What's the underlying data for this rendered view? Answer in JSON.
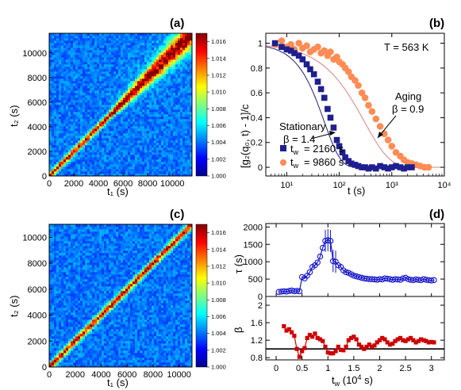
{
  "panel_labels": [
    "(a)",
    "(b)",
    "(c)",
    "(d)"
  ],
  "colorbar": {
    "ticks": [
      "1.016",
      "1.014",
      "1.012",
      "1.010",
      "1.008",
      "1.006",
      "1.004",
      "1.002",
      "1.000"
    ],
    "range": [
      1.0,
      1.017
    ]
  },
  "colors": {
    "blue_series": "#1f1f8f",
    "orange_series": "#ff8c55",
    "red_series": "#cc0000",
    "tau_series": "#1515c8"
  },
  "chart_data": [
    {
      "id": "a",
      "type": "heatmap",
      "title": "(a)",
      "xlabel": "t₁  (s)",
      "ylabel": "t₂ (s)",
      "xticks": [
        "0",
        "2000",
        "4000",
        "6000",
        "8000",
        "10000"
      ],
      "yticks": [
        "0",
        "2000",
        "4000",
        "6000",
        "8000",
        "10000"
      ],
      "xlim": [
        0,
        11600
      ],
      "ylim": [
        0,
        11600
      ],
      "description_values": {
        "diagonal_feature": "widening band, onset near t = 5000 s"
      }
    },
    {
      "id": "b",
      "type": "scatter",
      "title": "(b)",
      "xscale": "log",
      "xlabel": "t (s)",
      "ylabel": "[g₂(q₀, t) - 1]/c",
      "xlim": [
        4,
        10000
      ],
      "ylim": [
        -0.07,
        1.08
      ],
      "xticks": [
        "10¹",
        "10²",
        "10³",
        "10⁴"
      ],
      "yticks": [
        "0",
        "0.2",
        "0.4",
        "0.6",
        "0.8",
        "1"
      ],
      "annotations": {
        "temperature": "T = 563 K",
        "aging": "Aging",
        "aging_beta": "β = 0.9",
        "stationary": "Stationary",
        "stationary_beta": "β = 1.4"
      },
      "legend_position": "bottom-left",
      "series": [
        {
          "name": "t_w = 2160 s",
          "legend_label": "= 2160 s",
          "marker": "square",
          "tau": 85,
          "beta": 1.4,
          "x": [
            6,
            8,
            10,
            12,
            14,
            17,
            20,
            24,
            28,
            33,
            39,
            45,
            52,
            60,
            68,
            78,
            90,
            100,
            115,
            130,
            150,
            170,
            200,
            230,
            270,
            310,
            360,
            420,
            500,
            600,
            720,
            850,
            1000,
            1200,
            1450,
            1700,
            2000,
            2400
          ],
          "y": [
            1.0,
            0.97,
            0.95,
            0.94,
            0.92,
            0.9,
            0.87,
            0.83,
            0.79,
            0.75,
            0.69,
            0.63,
            0.56,
            0.47,
            0.4,
            0.32,
            0.22,
            0.17,
            0.12,
            0.08,
            0.05,
            0.03,
            0.02,
            0.01,
            0.0,
            0.0,
            -0.01,
            0.0,
            -0.01,
            0.01,
            0.0,
            -0.01,
            0.0,
            0.01,
            0.0,
            -0.01,
            0.0,
            0.0
          ]
        },
        {
          "name": "t_w = 9860 s",
          "legend_label": "= 9860 s",
          "marker": "circle",
          "tau": 650,
          "beta": 0.9,
          "x": [
            6,
            8,
            10,
            12,
            14,
            17,
            20,
            24,
            28,
            33,
            39,
            45,
            52,
            60,
            68,
            78,
            90,
            100,
            115,
            130,
            150,
            170,
            200,
            230,
            270,
            310,
            360,
            420,
            500,
            600,
            720,
            850,
            1000,
            1200,
            1450,
            1700,
            2000,
            2400,
            2900,
            3500,
            4200,
            5000
          ],
          "y": [
            0.99,
            1.02,
            0.97,
            0.99,
            0.95,
            1.0,
            0.96,
            0.98,
            0.93,
            0.95,
            0.97,
            0.92,
            0.94,
            0.9,
            0.93,
            0.87,
            0.89,
            0.85,
            0.83,
            0.8,
            0.77,
            0.73,
            0.7,
            0.66,
            0.6,
            0.56,
            0.5,
            0.45,
            0.39,
            0.33,
            0.27,
            0.22,
            0.17,
            0.12,
            0.09,
            0.06,
            0.04,
            0.03,
            0.02,
            0.01,
            0.0,
            0.0
          ]
        }
      ],
      "fit_curves": "solid lines through each series"
    },
    {
      "id": "c",
      "type": "heatmap",
      "title": "(c)",
      "xlabel": "t₁  (s)",
      "ylabel": "t₂ (s)",
      "xticks": [
        "0",
        "2000",
        "4000",
        "6000",
        "8000",
        "10000"
      ],
      "yticks": [
        "0",
        "2000",
        "4000",
        "6000",
        "8000",
        "10000"
      ],
      "xlim": [
        0,
        11000
      ],
      "ylim": [
        0,
        11000
      ],
      "description_values": {
        "diagonal_feature": "uniform band"
      }
    },
    {
      "id": "d_top",
      "type": "line",
      "title": "(d)",
      "ylabel": "τ (s)",
      "xlim": [
        -0.2,
        3.25
      ],
      "ylim": [
        0,
        2100
      ],
      "yticks": [
        "0",
        "500",
        "1000",
        "1500",
        "2000"
      ],
      "x": [
        0.05,
        0.1,
        0.15,
        0.2,
        0.25,
        0.3,
        0.35,
        0.4,
        0.45,
        0.5,
        0.55,
        0.6,
        0.65,
        0.7,
        0.75,
        0.8,
        0.85,
        0.9,
        0.95,
        1.0,
        1.05,
        1.1,
        1.15,
        1.2,
        1.25,
        1.3,
        1.35,
        1.4,
        1.45,
        1.5,
        1.55,
        1.6,
        1.65,
        1.7,
        1.75,
        1.8,
        1.85,
        1.9,
        1.95,
        2.0,
        2.05,
        2.1,
        2.15,
        2.2,
        2.25,
        2.3,
        2.35,
        2.4,
        2.45,
        2.5,
        2.55,
        2.6,
        2.65,
        2.7,
        2.75,
        2.8,
        2.85,
        2.9,
        2.95,
        3.0,
        3.05
      ],
      "y": [
        130,
        140,
        150,
        140,
        160,
        170,
        150,
        160,
        150,
        560,
        520,
        600,
        700,
        850,
        900,
        980,
        1150,
        1400,
        1600,
        1620,
        1600,
        1020,
        1000,
        900,
        850,
        750,
        700,
        680,
        640,
        600,
        580,
        560,
        540,
        520,
        510,
        500,
        500,
        490,
        480,
        500,
        490,
        520,
        510,
        500,
        480,
        500,
        490,
        480,
        520,
        540,
        500,
        480,
        470,
        490,
        480,
        470,
        500,
        480,
        470,
        460,
        470
      ]
    },
    {
      "id": "d_bottom",
      "type": "line",
      "xlabel": "t_w (10⁴ s)",
      "ylabel": "β",
      "xlim": [
        -0.2,
        3.25
      ],
      "ylim": [
        0.75,
        2.2
      ],
      "yticks": [
        "0.8",
        "1.2",
        "1.6",
        "2"
      ],
      "xticks": [
        "0",
        "0.5",
        "1",
        "1.5",
        "2",
        "2.5",
        "3"
      ],
      "reference_line": 1.0,
      "x": [
        0.15,
        0.2,
        0.25,
        0.3,
        0.35,
        0.4,
        0.45,
        0.5,
        0.55,
        0.6,
        0.65,
        0.7,
        0.75,
        0.8,
        0.85,
        0.9,
        0.95,
        1.0,
        1.05,
        1.1,
        1.15,
        1.2,
        1.25,
        1.3,
        1.35,
        1.4,
        1.45,
        1.5,
        1.55,
        1.6,
        1.65,
        1.7,
        1.75,
        1.8,
        1.85,
        1.9,
        1.95,
        2.0,
        2.05,
        2.1,
        2.15,
        2.2,
        2.25,
        2.3,
        2.35,
        2.4,
        2.45,
        2.5,
        2.55,
        2.6,
        2.65,
        2.7,
        2.75,
        2.8,
        2.85,
        2.9,
        2.95,
        3.0,
        3.05
      ],
      "y": [
        1.52,
        1.42,
        1.45,
        1.38,
        1.3,
        1.0,
        0.82,
        0.95,
        1.02,
        1.25,
        1.32,
        1.28,
        1.35,
        1.25,
        1.22,
        1.18,
        1.05,
        0.92,
        0.9,
        0.9,
        0.95,
        1.05,
        0.98,
        0.97,
        1.05,
        1.2,
        1.25,
        1.28,
        1.22,
        1.1,
        1.05,
        1.0,
        1.05,
        1.1,
        1.05,
        1.08,
        1.15,
        1.2,
        1.25,
        1.22,
        1.15,
        1.1,
        1.12,
        1.18,
        1.22,
        1.25,
        1.2,
        1.18,
        1.22,
        1.25,
        1.2,
        1.15,
        1.18,
        1.22,
        1.2,
        1.18,
        1.15,
        1.16,
        1.15
      ]
    }
  ]
}
